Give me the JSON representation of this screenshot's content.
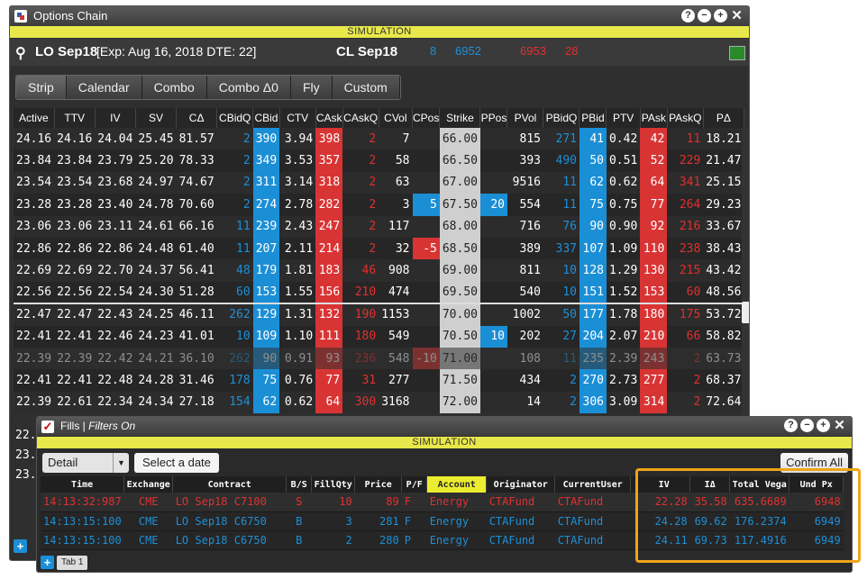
{
  "window": {
    "title": "Options Chain",
    "sim_label": "SIMULATION"
  },
  "header": {
    "symbol": "LO Sep18",
    "expiry": "[Exp: Aug 16, 2018 DTE: 22]",
    "underlying": "CL Sep18",
    "bid_qty": "8",
    "bid": "6952",
    "ask": "6953",
    "ask_qty": "28"
  },
  "tabs": [
    "Strip",
    "Calendar",
    "Combo",
    "Combo Δ0",
    "Fly",
    "Custom"
  ],
  "columns": [
    "Active",
    "TTV",
    "IV",
    "SV",
    "CΔ",
    "CBidQ",
    "CBid",
    "CTV",
    "CAsk",
    "CAskQ",
    "CVol",
    "CPos",
    "Strike",
    "PPos",
    "PVol",
    "PBidQ",
    "PBid",
    "PTV",
    "PAsk",
    "PAskQ",
    "PΔ"
  ],
  "rows": [
    [
      "24.16",
      "24.16",
      "24.04",
      "25.45",
      "81.57",
      "2",
      "390",
      "3.94",
      "398",
      "2",
      "7",
      "",
      "66.00",
      "",
      "815",
      "271",
      "41",
      "0.42",
      "42",
      "11",
      "18.21"
    ],
    [
      "23.84",
      "23.84",
      "23.79",
      "25.20",
      "78.33",
      "2",
      "349",
      "3.53",
      "357",
      "2",
      "58",
      "",
      "66.50",
      "",
      "393",
      "490",
      "50",
      "0.51",
      "52",
      "229",
      "21.47"
    ],
    [
      "23.54",
      "23.54",
      "23.68",
      "24.97",
      "74.67",
      "2",
      "311",
      "3.14",
      "318",
      "2",
      "63",
      "",
      "67.00",
      "",
      "9516",
      "11",
      "62",
      "0.62",
      "64",
      "341",
      "25.15"
    ],
    [
      "23.28",
      "23.28",
      "23.40",
      "24.78",
      "70.60",
      "2",
      "274",
      "2.78",
      "282",
      "2",
      "3",
      "5",
      "67.50",
      "20",
      "554",
      "11",
      "75",
      "0.75",
      "77",
      "264",
      "29.23"
    ],
    [
      "23.06",
      "23.06",
      "23.11",
      "24.61",
      "66.16",
      "11",
      "239",
      "2.43",
      "247",
      "2",
      "117",
      "",
      "68.00",
      "",
      "716",
      "76",
      "90",
      "0.90",
      "92",
      "216",
      "33.67"
    ],
    [
      "22.86",
      "22.86",
      "22.86",
      "24.48",
      "61.40",
      "11",
      "207",
      "2.11",
      "214",
      "2",
      "32",
      "-5",
      "68.50",
      "",
      "389",
      "337",
      "107",
      "1.09",
      "110",
      "238",
      "38.43"
    ],
    [
      "22.69",
      "22.69",
      "22.70",
      "24.37",
      "56.41",
      "48",
      "179",
      "1.81",
      "183",
      "46",
      "908",
      "",
      "69.00",
      "",
      "811",
      "10",
      "128",
      "1.29",
      "130",
      "215",
      "43.42"
    ],
    [
      "22.56",
      "22.56",
      "22.54",
      "24.30",
      "51.28",
      "60",
      "153",
      "1.55",
      "156",
      "210",
      "474",
      "",
      "69.50",
      "",
      "540",
      "10",
      "151",
      "1.52",
      "153",
      "60",
      "48.56"
    ],
    [
      "22.47",
      "22.47",
      "22.43",
      "24.25",
      "46.11",
      "262",
      "129",
      "1.31",
      "132",
      "190",
      "1153",
      "",
      "70.00",
      "",
      "1002",
      "50",
      "177",
      "1.78",
      "180",
      "175",
      "53.72"
    ],
    [
      "22.41",
      "22.41",
      "22.46",
      "24.23",
      "41.01",
      "10",
      "109",
      "1.10",
      "111",
      "180",
      "549",
      "",
      "70.50",
      "10",
      "202",
      "27",
      "204",
      "2.07",
      "210",
      "66",
      "58.82"
    ],
    [
      "22.39",
      "22.39",
      "22.42",
      "24.21",
      "36.10",
      "262",
      "90",
      "0.91",
      "93",
      "236",
      "548",
      "-10",
      "71.00",
      "",
      "108",
      "11",
      "235",
      "2.39",
      "243",
      "2",
      "63.73"
    ],
    [
      "22.41",
      "22.41",
      "22.48",
      "24.28",
      "31.46",
      "178",
      "75",
      "0.76",
      "77",
      "31",
      "277",
      "",
      "71.50",
      "",
      "434",
      "2",
      "270",
      "2.73",
      "277",
      "2",
      "68.37"
    ],
    [
      "22.39",
      "22.61",
      "22.34",
      "24.34",
      "27.18",
      "154",
      "62",
      "0.62",
      "64",
      "300",
      "3168",
      "",
      "72.00",
      "",
      "14",
      "2",
      "306",
      "3.09",
      "314",
      "2",
      "72.64"
    ]
  ],
  "fills": {
    "title": "Fills |",
    "filter": "Filters On",
    "sim_label": "SIMULATION",
    "detail": "Detail",
    "select_date": "Select a date",
    "confirm_all": "Confirm All",
    "columns": [
      "Time",
      "Exchange",
      "Contract",
      "B/S",
      "FillQty",
      "Price",
      "P/F",
      "Account",
      "Originator",
      "CurrentUser",
      "",
      "IV",
      "IΔ",
      "Total Vega",
      "Und Px"
    ],
    "rows": [
      [
        "14:13:32:987",
        "CME",
        "LO Sep18 C7100",
        "S",
        "10",
        "89",
        "F",
        "Energy",
        "CTAFund",
        "CTAFund",
        "",
        "22.28",
        "35.58",
        "635.6689",
        "6948"
      ],
      [
        "14:13:15:100",
        "CME",
        "LO Sep18 C6750",
        "B",
        "3",
        "281",
        "F",
        "Energy",
        "CTAFund",
        "CTAFund",
        "",
        "24.28",
        "69.62",
        "176.2374",
        "6949"
      ],
      [
        "14:13:15:100",
        "CME",
        "LO Sep18 C6750",
        "B",
        "2",
        "280",
        "P",
        "Energy",
        "CTAFund",
        "CTAFund",
        "",
        "24.11",
        "69.73",
        "117.4916",
        "6949"
      ]
    ],
    "tab_label": "Tab 1"
  },
  "partial_rows": [
    "22.",
    "23.",
    "23."
  ]
}
